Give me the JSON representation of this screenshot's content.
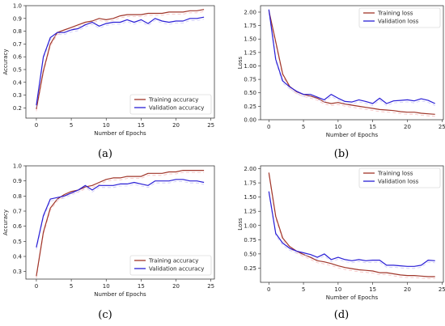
{
  "colors": {
    "training": "#a0362a",
    "validation": "#2a1fd6",
    "training_ghost": "#f2a3a3",
    "validation_ghost": "#b7b2f5"
  },
  "chart_data": [
    {
      "type": "line",
      "panel_label": "(a)",
      "xlabel": "Number of Epochs",
      "ylabel": "Accuracy",
      "xlim": [
        -1.5,
        25.5
      ],
      "ylim": [
        0.12,
        1.0
      ],
      "xticks": [
        0,
        5,
        10,
        15,
        20,
        25
      ],
      "yticks": [
        0.2,
        0.3,
        0.4,
        0.5,
        0.6,
        0.7,
        0.8,
        0.9,
        1.0
      ],
      "ytick_labels": [
        "0.2",
        "0.3",
        "0.4",
        "0.5",
        "0.6",
        "0.7",
        "0.8",
        "0.9",
        "1.0"
      ],
      "legend_position": "bottom-right",
      "x": [
        0,
        1,
        2,
        3,
        4,
        5,
        6,
        7,
        8,
        9,
        10,
        11,
        12,
        13,
        14,
        15,
        16,
        17,
        18,
        19,
        20,
        21,
        22,
        23,
        24
      ],
      "series": [
        {
          "name": "Training accuracy",
          "role": "training",
          "values": [
            0.19,
            0.49,
            0.7,
            0.79,
            0.81,
            0.83,
            0.85,
            0.87,
            0.88,
            0.9,
            0.89,
            0.9,
            0.92,
            0.93,
            0.93,
            0.93,
            0.94,
            0.94,
            0.94,
            0.95,
            0.95,
            0.95,
            0.96,
            0.96,
            0.97
          ]
        },
        {
          "name": "Validation accuracy",
          "role": "validation",
          "values": [
            0.22,
            0.6,
            0.75,
            0.79,
            0.79,
            0.81,
            0.82,
            0.85,
            0.87,
            0.84,
            0.86,
            0.87,
            0.87,
            0.89,
            0.87,
            0.89,
            0.86,
            0.9,
            0.88,
            0.87,
            0.88,
            0.88,
            0.9,
            0.9,
            0.91
          ]
        }
      ]
    },
    {
      "type": "line",
      "panel_label": "(b)",
      "xlabel": "Number of Epochs",
      "ylabel": "Loss",
      "xlim": [
        -1.2,
        25.2
      ],
      "ylim": [
        0.0,
        2.12
      ],
      "xticks": [
        0,
        5,
        10,
        15,
        20,
        25
      ],
      "yticks": [
        0.0,
        0.25,
        0.5,
        0.75,
        1.0,
        1.25,
        1.5,
        1.75,
        2.0
      ],
      "ytick_labels": [
        "0.00",
        "0.25",
        "0.50",
        "0.75",
        "1.00",
        "1.25",
        "1.50",
        "1.75",
        "2.00"
      ],
      "legend_position": "top-right",
      "x": [
        0,
        1,
        2,
        3,
        4,
        5,
        6,
        7,
        8,
        9,
        10,
        11,
        12,
        13,
        14,
        15,
        16,
        17,
        18,
        19,
        20,
        21,
        22,
        23,
        24
      ],
      "series": [
        {
          "name": "Training loss",
          "role": "training",
          "values": [
            2.03,
            1.45,
            0.85,
            0.62,
            0.52,
            0.47,
            0.44,
            0.4,
            0.33,
            0.3,
            0.32,
            0.29,
            0.27,
            0.25,
            0.23,
            0.21,
            0.19,
            0.18,
            0.17,
            0.15,
            0.14,
            0.14,
            0.12,
            0.11,
            0.1
          ]
        },
        {
          "name": "Validation loss",
          "role": "validation",
          "values": [
            2.05,
            1.12,
            0.72,
            0.61,
            0.53,
            0.47,
            0.47,
            0.42,
            0.37,
            0.47,
            0.4,
            0.34,
            0.33,
            0.37,
            0.34,
            0.3,
            0.4,
            0.3,
            0.35,
            0.36,
            0.37,
            0.35,
            0.39,
            0.36,
            0.3
          ]
        }
      ]
    },
    {
      "type": "line",
      "panel_label": "(c)",
      "xlabel": "Number of Epochs",
      "ylabel": "Accuracy",
      "xlim": [
        -1.5,
        25.5
      ],
      "ylim": [
        0.25,
        1.0
      ],
      "xticks": [
        0,
        5,
        10,
        15,
        20,
        25
      ],
      "yticks": [
        0.3,
        0.4,
        0.5,
        0.6,
        0.7,
        0.8,
        0.9,
        1.0
      ],
      "ytick_labels": [
        "0.3",
        "0.4",
        "0.5",
        "0.6",
        "0.7",
        "0.8",
        "0.9",
        "1.0"
      ],
      "legend_position": "bottom-right",
      "x": [
        0,
        1,
        2,
        3,
        4,
        5,
        6,
        7,
        8,
        9,
        10,
        11,
        12,
        13,
        14,
        15,
        16,
        17,
        18,
        19,
        20,
        21,
        22,
        23,
        24
      ],
      "series": [
        {
          "name": "Training accuracy",
          "role": "training",
          "values": [
            0.27,
            0.56,
            0.72,
            0.78,
            0.81,
            0.83,
            0.84,
            0.86,
            0.87,
            0.89,
            0.91,
            0.92,
            0.92,
            0.93,
            0.93,
            0.93,
            0.95,
            0.95,
            0.95,
            0.96,
            0.96,
            0.97,
            0.97,
            0.97,
            0.97
          ]
        },
        {
          "name": "Validation accuracy",
          "role": "validation",
          "values": [
            0.46,
            0.67,
            0.78,
            0.79,
            0.8,
            0.82,
            0.84,
            0.87,
            0.84,
            0.87,
            0.87,
            0.87,
            0.88,
            0.88,
            0.89,
            0.88,
            0.87,
            0.9,
            0.9,
            0.9,
            0.91,
            0.91,
            0.9,
            0.9,
            0.89
          ]
        }
      ]
    },
    {
      "type": "line",
      "panel_label": "(d)",
      "xlabel": "Number of Epochs",
      "ylabel": "Loss",
      "xlim": [
        -1.2,
        25.2
      ],
      "ylim": [
        0.0,
        2.05
      ],
      "xticks": [
        0,
        5,
        10,
        15,
        20,
        25
      ],
      "yticks": [
        0.25,
        0.5,
        0.75,
        1.0,
        1.25,
        1.5,
        1.75,
        2.0
      ],
      "ytick_labels": [
        "0.25",
        "0.50",
        "0.75",
        "1.00",
        "1.25",
        "1.50",
        "1.75",
        "2.00"
      ],
      "legend_position": "top-right",
      "x": [
        0,
        1,
        2,
        3,
        4,
        5,
        6,
        7,
        8,
        9,
        10,
        11,
        12,
        13,
        14,
        15,
        16,
        17,
        18,
        19,
        20,
        21,
        22,
        23,
        24
      ],
      "series": [
        {
          "name": "Training loss",
          "role": "training",
          "values": [
            1.93,
            1.16,
            0.78,
            0.63,
            0.55,
            0.49,
            0.44,
            0.38,
            0.36,
            0.33,
            0.29,
            0.26,
            0.24,
            0.22,
            0.21,
            0.2,
            0.17,
            0.17,
            0.15,
            0.13,
            0.12,
            0.12,
            0.11,
            0.1,
            0.1
          ]
        },
        {
          "name": "Validation loss",
          "role": "validation",
          "values": [
            1.6,
            0.86,
            0.69,
            0.6,
            0.55,
            0.52,
            0.49,
            0.44,
            0.5,
            0.4,
            0.44,
            0.4,
            0.38,
            0.4,
            0.38,
            0.39,
            0.39,
            0.3,
            0.3,
            0.29,
            0.28,
            0.28,
            0.3,
            0.39,
            0.38
          ]
        }
      ]
    }
  ]
}
